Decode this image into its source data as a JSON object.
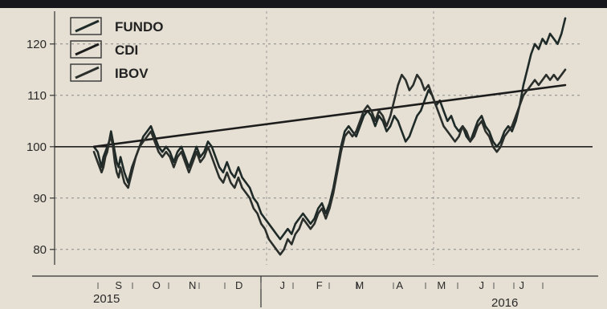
{
  "chart_data": {
    "type": "line",
    "title": "",
    "xlabel": "",
    "ylabel": "",
    "ylim": [
      77,
      127
    ],
    "yticks": [
      80,
      90,
      100,
      110,
      120
    ],
    "ytick_labels": [
      "80",
      "90",
      "100",
      "110",
      "120"
    ],
    "x_month_labels": [
      "S",
      "O",
      "N",
      "D",
      "J",
      "F",
      "M",
      "A",
      "M",
      "J",
      "J"
    ],
    "year_labels": [
      "2015",
      "2016"
    ],
    "legend_position": "top-left",
    "grid": true,
    "reference_line": 100,
    "series": [
      {
        "name": "FUNDO",
        "color": "#1e2a28",
        "points": [
          [
            0,
            100
          ],
          [
            2,
            99
          ],
          [
            4,
            96
          ],
          [
            5,
            98
          ],
          [
            6,
            99
          ],
          [
            7,
            100
          ],
          [
            8,
            101
          ],
          [
            9,
            103
          ],
          [
            10,
            101
          ],
          [
            11,
            99
          ],
          [
            12,
            97
          ],
          [
            13,
            96
          ],
          [
            14,
            98
          ],
          [
            16,
            95
          ],
          [
            18,
            93
          ],
          [
            20,
            96
          ],
          [
            22,
            98
          ],
          [
            24,
            100
          ],
          [
            26,
            102
          ],
          [
            28,
            103
          ],
          [
            30,
            104
          ],
          [
            32,
            102
          ],
          [
            34,
            100
          ],
          [
            36,
            99
          ],
          [
            38,
            100
          ],
          [
            40,
            99
          ],
          [
            42,
            97
          ],
          [
            44,
            99
          ],
          [
            46,
            100
          ],
          [
            48,
            98
          ],
          [
            50,
            96
          ],
          [
            52,
            98
          ],
          [
            54,
            100
          ],
          [
            56,
            98
          ],
          [
            58,
            99
          ],
          [
            60,
            101
          ],
          [
            62,
            100
          ],
          [
            64,
            98
          ],
          [
            66,
            96
          ],
          [
            68,
            95
          ],
          [
            70,
            97
          ],
          [
            72,
            95
          ],
          [
            74,
            94
          ],
          [
            76,
            96
          ],
          [
            78,
            94
          ],
          [
            80,
            93
          ],
          [
            82,
            92
          ],
          [
            84,
            90
          ],
          [
            86,
            89
          ],
          [
            88,
            87
          ],
          [
            90,
            86
          ],
          [
            92,
            85
          ],
          [
            94,
            84
          ],
          [
            96,
            83
          ],
          [
            98,
            82
          ],
          [
            100,
            83
          ],
          [
            102,
            84
          ],
          [
            104,
            83
          ],
          [
            106,
            85
          ],
          [
            108,
            86
          ],
          [
            110,
            87
          ],
          [
            112,
            86
          ],
          [
            114,
            85
          ],
          [
            116,
            86
          ],
          [
            118,
            88
          ],
          [
            120,
            89
          ],
          [
            122,
            87
          ],
          [
            124,
            89
          ],
          [
            126,
            92
          ],
          [
            128,
            96
          ],
          [
            130,
            100
          ],
          [
            132,
            103
          ],
          [
            134,
            104
          ],
          [
            136,
            103
          ],
          [
            138,
            102
          ],
          [
            140,
            104
          ],
          [
            142,
            106
          ],
          [
            144,
            107
          ],
          [
            146,
            106
          ],
          [
            148,
            104
          ],
          [
            150,
            106
          ],
          [
            152,
            105
          ],
          [
            154,
            103
          ],
          [
            156,
            104
          ],
          [
            158,
            106
          ],
          [
            160,
            105
          ],
          [
            162,
            103
          ],
          [
            164,
            101
          ],
          [
            166,
            102
          ],
          [
            168,
            104
          ],
          [
            170,
            106
          ],
          [
            172,
            107
          ],
          [
            174,
            109
          ],
          [
            176,
            111
          ],
          [
            178,
            110
          ],
          [
            180,
            108
          ],
          [
            182,
            109
          ],
          [
            184,
            107
          ],
          [
            186,
            105
          ],
          [
            188,
            106
          ],
          [
            190,
            104
          ],
          [
            192,
            103
          ],
          [
            194,
            104
          ],
          [
            196,
            102
          ],
          [
            198,
            101
          ],
          [
            200,
            103
          ],
          [
            202,
            105
          ],
          [
            204,
            106
          ],
          [
            206,
            104
          ],
          [
            208,
            103
          ],
          [
            210,
            101
          ],
          [
            212,
            100
          ],
          [
            214,
            101
          ],
          [
            216,
            103
          ],
          [
            218,
            104
          ],
          [
            220,
            103
          ],
          [
            222,
            105
          ],
          [
            224,
            108
          ],
          [
            226,
            112
          ],
          [
            228,
            115
          ],
          [
            230,
            118
          ],
          [
            232,
            120
          ],
          [
            234,
            119
          ],
          [
            236,
            121
          ],
          [
            238,
            120
          ],
          [
            240,
            122
          ],
          [
            242,
            121
          ],
          [
            244,
            120
          ],
          [
            246,
            122
          ],
          [
            248,
            125
          ]
        ]
      },
      {
        "name": "CDI",
        "color": "#1c1c1c",
        "points": [
          [
            0,
            100
          ],
          [
            248,
            112
          ]
        ]
      },
      {
        "name": "IBOV",
        "color": "#2a2f2c",
        "points": [
          [
            0,
            99
          ],
          [
            2,
            97
          ],
          [
            4,
            95
          ],
          [
            5,
            96
          ],
          [
            6,
            98
          ],
          [
            7,
            99
          ],
          [
            8,
            101
          ],
          [
            9,
            102
          ],
          [
            10,
            100
          ],
          [
            11,
            97
          ],
          [
            12,
            95
          ],
          [
            13,
            94
          ],
          [
            14,
            96
          ],
          [
            16,
            93
          ],
          [
            18,
            92
          ],
          [
            20,
            95
          ],
          [
            22,
            98
          ],
          [
            24,
            100
          ],
          [
            26,
            101
          ],
          [
            28,
            102
          ],
          [
            30,
            103
          ],
          [
            32,
            101
          ],
          [
            34,
            99
          ],
          [
            36,
            98
          ],
          [
            38,
            99
          ],
          [
            40,
            98
          ],
          [
            42,
            96
          ],
          [
            44,
            98
          ],
          [
            46,
            99
          ],
          [
            48,
            97
          ],
          [
            50,
            95
          ],
          [
            52,
            97
          ],
          [
            54,
            99
          ],
          [
            56,
            97
          ],
          [
            58,
            98
          ],
          [
            60,
            100
          ],
          [
            62,
            98
          ],
          [
            64,
            96
          ],
          [
            66,
            94
          ],
          [
            68,
            93
          ],
          [
            70,
            95
          ],
          [
            72,
            93
          ],
          [
            74,
            92
          ],
          [
            76,
            94
          ],
          [
            78,
            92
          ],
          [
            80,
            91
          ],
          [
            82,
            90
          ],
          [
            84,
            88
          ],
          [
            86,
            87
          ],
          [
            88,
            85
          ],
          [
            90,
            84
          ],
          [
            92,
            82
          ],
          [
            94,
            81
          ],
          [
            96,
            80
          ],
          [
            98,
            79
          ],
          [
            100,
            80
          ],
          [
            102,
            82
          ],
          [
            104,
            81
          ],
          [
            106,
            83
          ],
          [
            108,
            84
          ],
          [
            110,
            86
          ],
          [
            112,
            85
          ],
          [
            114,
            84
          ],
          [
            116,
            85
          ],
          [
            118,
            87
          ],
          [
            120,
            88
          ],
          [
            122,
            86
          ],
          [
            124,
            88
          ],
          [
            126,
            91
          ],
          [
            128,
            95
          ],
          [
            130,
            99
          ],
          [
            132,
            102
          ],
          [
            134,
            103
          ],
          [
            136,
            102
          ],
          [
            138,
            103
          ],
          [
            140,
            105
          ],
          [
            142,
            107
          ],
          [
            144,
            108
          ],
          [
            146,
            107
          ],
          [
            148,
            105
          ],
          [
            150,
            107
          ],
          [
            152,
            106
          ],
          [
            154,
            104
          ],
          [
            156,
            106
          ],
          [
            158,
            109
          ],
          [
            160,
            112
          ],
          [
            162,
            114
          ],
          [
            164,
            113
          ],
          [
            166,
            111
          ],
          [
            168,
            112
          ],
          [
            170,
            114
          ],
          [
            172,
            113
          ],
          [
            174,
            111
          ],
          [
            176,
            112
          ],
          [
            178,
            110
          ],
          [
            180,
            108
          ],
          [
            182,
            106
          ],
          [
            184,
            104
          ],
          [
            186,
            103
          ],
          [
            188,
            102
          ],
          [
            190,
            101
          ],
          [
            192,
            102
          ],
          [
            194,
            104
          ],
          [
            196,
            103
          ],
          [
            198,
            101
          ],
          [
            200,
            102
          ],
          [
            202,
            104
          ],
          [
            204,
            105
          ],
          [
            206,
            103
          ],
          [
            208,
            102
          ],
          [
            210,
            100
          ],
          [
            212,
            99
          ],
          [
            214,
            100
          ],
          [
            216,
            102
          ],
          [
            218,
            103
          ],
          [
            220,
            104
          ],
          [
            222,
            106
          ],
          [
            224,
            108
          ],
          [
            226,
            110
          ],
          [
            228,
            111
          ],
          [
            230,
            112
          ],
          [
            232,
            113
          ],
          [
            234,
            112
          ],
          [
            236,
            113
          ],
          [
            238,
            114
          ],
          [
            240,
            113
          ],
          [
            242,
            114
          ],
          [
            244,
            113
          ],
          [
            246,
            114
          ],
          [
            248,
            115
          ]
        ]
      }
    ]
  }
}
